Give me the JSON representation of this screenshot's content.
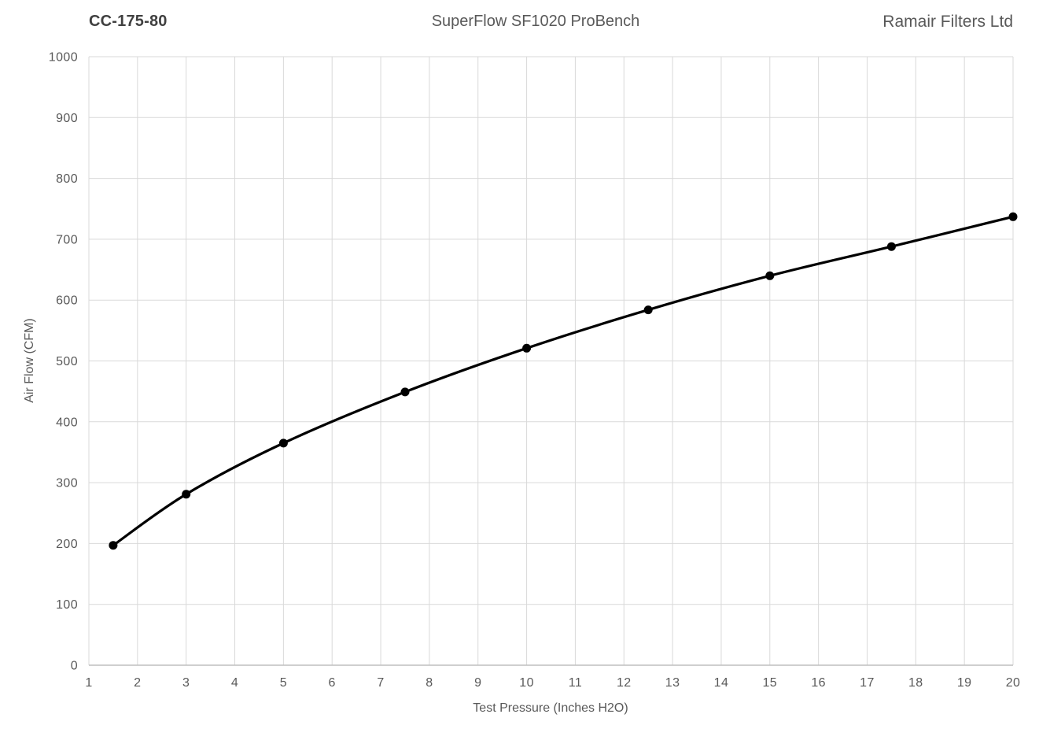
{
  "header": {
    "left_title": "CC-175-80",
    "center_title": "SuperFlow SF1020 ProBench",
    "right_title": "Ramair Filters Ltd"
  },
  "colors": {
    "background": "#FFFFFF",
    "line": "#000000",
    "marker": "#000000",
    "grid": "#D9D9D9",
    "axis_line": "#BFBFBF",
    "tick_text": "#595959",
    "axis_title_text": "#595959",
    "header_text": "#595959",
    "header_left_text": "#404040"
  },
  "chart_data": {
    "type": "line",
    "title": "SuperFlow SF1020 ProBench",
    "subtitle_left": "CC-175-80",
    "subtitle_right": "Ramair Filters Ltd",
    "xlabel": "Test Pressure (Inches H2O)",
    "ylabel": "Air Flow (CFM)",
    "xlim": [
      1,
      20
    ],
    "ylim": [
      0,
      1000
    ],
    "xticks": [
      1,
      2,
      3,
      4,
      5,
      6,
      7,
      8,
      9,
      10,
      11,
      12,
      13,
      14,
      15,
      16,
      17,
      18,
      19,
      20
    ],
    "yticks": [
      0,
      100,
      200,
      300,
      400,
      500,
      600,
      700,
      800,
      900,
      1000
    ],
    "grid": true,
    "legend_position": "none",
    "series": [
      {
        "name": "CC-175-80",
        "marker": "circle",
        "smooth": true,
        "x": [
          1.5,
          3,
          5,
          7.5,
          10,
          12.5,
          15,
          17.5,
          20
        ],
        "y": [
          197,
          281,
          365,
          449,
          521,
          584,
          640,
          688,
          737
        ]
      }
    ]
  }
}
